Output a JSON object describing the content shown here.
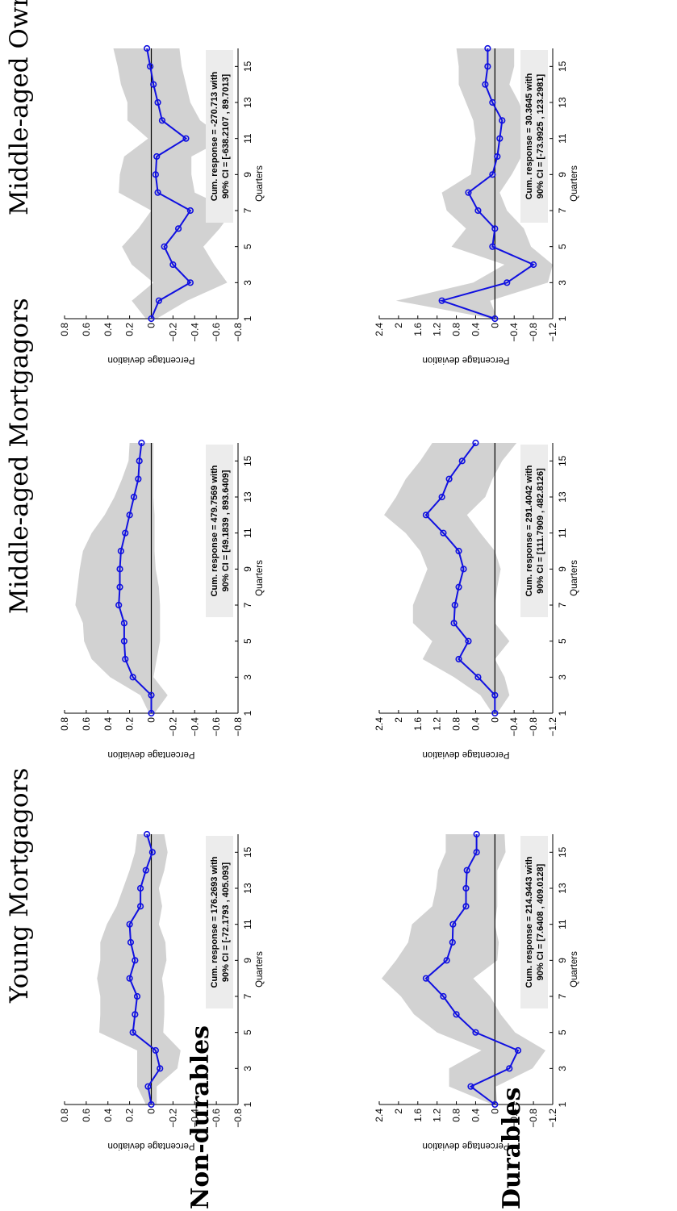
{
  "column_titles": [
    "Young Mortgagors",
    "Middle-aged Mortgagors",
    "Middle-aged Owners"
  ],
  "row_labels": [
    "Non-durables",
    "Durables"
  ],
  "colors": {
    "line": "#1010e0",
    "band": "#d2d2d2",
    "zero_line": "#000000"
  },
  "chart_data": [
    {
      "type": "line",
      "row": 0,
      "col": 0,
      "xlabel": "Quarters",
      "ylabel": "Percentage deviation",
      "xlim": [
        1,
        16
      ],
      "ylim": [
        -0.8,
        0.8
      ],
      "xticks": [
        "1",
        "3",
        "5",
        "7",
        "9",
        "11",
        "13",
        "15"
      ],
      "yticks": [
        "−0.8",
        "−0.6",
        "−0.4",
        "−0.2",
        "0",
        "0.2",
        "0.4",
        "0.6",
        "0.8"
      ],
      "x": [
        1,
        2,
        3,
        4,
        5,
        6,
        7,
        8,
        9,
        10,
        11,
        12,
        13,
        14,
        15,
        16
      ],
      "series": [
        {
          "values": [
            0.0,
            0.03,
            -0.08,
            -0.04,
            0.17,
            0.15,
            0.13,
            0.2,
            0.15,
            0.19,
            0.2,
            0.1,
            0.1,
            0.05,
            -0.01,
            0.04
          ]
        }
      ],
      "band_upper": [
        0.05,
        0.13,
        0.13,
        0.13,
        0.48,
        0.47,
        0.47,
        0.5,
        0.47,
        0.47,
        0.41,
        0.32,
        0.26,
        0.2,
        0.15,
        0.13
      ],
      "band_lower": [
        -0.05,
        -0.05,
        -0.24,
        -0.27,
        -0.11,
        -0.12,
        -0.12,
        -0.1,
        -0.14,
        -0.13,
        -0.07,
        -0.1,
        -0.07,
        -0.12,
        -0.15,
        -0.12
      ],
      "annotation": [
        "Cum. response = 176.2693 with",
        "90% CI = [-72.1793 , 405.093]"
      ]
    },
    {
      "type": "line",
      "row": 0,
      "col": 1,
      "xlabel": "Quarters",
      "ylabel": "Percentage deviation",
      "xlim": [
        1,
        16
      ],
      "ylim": [
        -0.8,
        0.8
      ],
      "xticks": [
        "1",
        "3",
        "5",
        "7",
        "9",
        "11",
        "13",
        "15"
      ],
      "yticks": [
        "−0.8",
        "−0.6",
        "−0.4",
        "−0.2",
        "0",
        "0.2",
        "0.4",
        "0.6",
        "0.8"
      ],
      "x": [
        1,
        2,
        3,
        4,
        5,
        6,
        7,
        8,
        9,
        10,
        11,
        12,
        13,
        14,
        15,
        16
      ],
      "series": [
        {
          "values": [
            0.0,
            0.0,
            0.17,
            0.24,
            0.25,
            0.25,
            0.3,
            0.29,
            0.29,
            0.28,
            0.24,
            0.2,
            0.16,
            0.12,
            0.11,
            0.09
          ]
        }
      ],
      "band_upper": [
        0.02,
        0.1,
        0.38,
        0.55,
        0.62,
        0.63,
        0.7,
        0.68,
        0.66,
        0.63,
        0.55,
        0.43,
        0.34,
        0.27,
        0.21,
        0.2
      ],
      "band_lower": [
        -0.03,
        -0.15,
        -0.02,
        -0.05,
        -0.08,
        -0.08,
        -0.08,
        -0.07,
        -0.04,
        -0.03,
        -0.03,
        -0.03,
        -0.02,
        -0.02,
        -0.02,
        -0.02
      ],
      "annotation": [
        "Cum. response = 479.7569 with",
        "90% CI = [49.1839 , 893.6409]"
      ]
    },
    {
      "type": "line",
      "row": 0,
      "col": 2,
      "xlabel": "Quarters",
      "ylabel": "Percentage deviation",
      "xlim": [
        1,
        16
      ],
      "ylim": [
        -0.8,
        0.8
      ],
      "xticks": [
        "1",
        "3",
        "5",
        "7",
        "9",
        "11",
        "13",
        "15"
      ],
      "yticks": [
        "−0.8",
        "−0.6",
        "−0.4",
        "−0.2",
        "0",
        "0.2",
        "0.4",
        "0.6",
        "0.8"
      ],
      "x": [
        1,
        2,
        3,
        4,
        5,
        6,
        7,
        8,
        9,
        10,
        11,
        12,
        13,
        14,
        15,
        16
      ],
      "series": [
        {
          "values": [
            0.0,
            -0.07,
            -0.36,
            -0.2,
            -0.12,
            -0.25,
            -0.36,
            -0.06,
            -0.04,
            -0.05,
            -0.32,
            -0.1,
            -0.06,
            -0.02,
            0.01,
            0.04
          ]
        }
      ],
      "band_upper": [
        0.05,
        0.18,
        -0.02,
        0.18,
        0.27,
        0.12,
        0.0,
        0.3,
        0.29,
        0.25,
        0.03,
        0.22,
        0.22,
        0.28,
        0.31,
        0.35
      ],
      "band_lower": [
        -0.05,
        -0.33,
        -0.7,
        -0.58,
        -0.48,
        -0.63,
        -0.75,
        -0.4,
        -0.37,
        -0.37,
        -0.68,
        -0.45,
        -0.36,
        -0.32,
        -0.28,
        -0.26
      ],
      "annotation": [
        "Cum. response = -270.713 with",
        "90% CI = [-638.2107 , 89.7013]"
      ]
    },
    {
      "type": "line",
      "row": 1,
      "col": 0,
      "xlabel": "Quarters",
      "ylabel": "Percentage deviation",
      "xlim": [
        1,
        16
      ],
      "ylim": [
        -1.2,
        2.4
      ],
      "xticks": [
        "1",
        "3",
        "5",
        "7",
        "9",
        "11",
        "13",
        "15"
      ],
      "yticks": [
        "−1.2",
        "−0.8",
        "−0.4",
        "0",
        "0.4",
        "0.8",
        "1.2",
        "1.6",
        "2",
        "2.4"
      ],
      "x": [
        1,
        2,
        3,
        4,
        5,
        6,
        7,
        8,
        9,
        10,
        11,
        12,
        13,
        14,
        15,
        16
      ],
      "series": [
        {
          "values": [
            0.0,
            0.5,
            -0.3,
            -0.48,
            0.4,
            0.8,
            1.07,
            1.43,
            1.0,
            0.88,
            0.87,
            0.6,
            0.6,
            0.58,
            0.38,
            0.38
          ]
        }
      ],
      "band_upper": [
        0.05,
        0.95,
        0.95,
        0.28,
        1.2,
        1.68,
        1.95,
        2.35,
        2.05,
        1.8,
        1.72,
        1.3,
        1.22,
        1.18,
        1.02,
        1.02
      ],
      "band_lower": [
        -0.05,
        -0.02,
        -0.78,
        -1.05,
        -0.42,
        -0.12,
        0.1,
        0.45,
        -0.05,
        -0.08,
        0.0,
        -0.05,
        -0.05,
        -0.05,
        -0.22,
        -0.2
      ],
      "annotation": [
        "Cum. response = 214.9443 with",
        "90% CI = [7.6408 , 409.0128]"
      ]
    },
    {
      "type": "line",
      "row": 1,
      "col": 1,
      "xlabel": "Quarters",
      "ylabel": "Percentage deviation",
      "xlim": [
        1,
        16
      ],
      "ylim": [
        -1.2,
        2.4
      ],
      "xticks": [
        "1",
        "3",
        "5",
        "7",
        "9",
        "11",
        "13",
        "15"
      ],
      "yticks": [
        "−1.2",
        "−0.8",
        "−0.4",
        "0",
        "0.4",
        "0.8",
        "1.2",
        "1.6",
        "2",
        "2.4"
      ],
      "x": [
        1,
        2,
        3,
        4,
        5,
        6,
        7,
        8,
        9,
        10,
        11,
        12,
        13,
        14,
        15,
        16
      ],
      "series": [
        {
          "values": [
            0.0,
            0.0,
            0.35,
            0.75,
            0.55,
            0.85,
            0.83,
            0.75,
            0.65,
            0.75,
            1.07,
            1.43,
            1.1,
            0.95,
            0.68,
            0.4
          ]
        }
      ],
      "band_upper": [
        0.05,
        0.3,
        0.85,
        1.5,
        1.3,
        1.7,
        1.7,
        1.55,
        1.4,
        1.55,
        1.85,
        2.3,
        2.05,
        1.85,
        1.55,
        1.3
      ],
      "band_lower": [
        -0.05,
        -0.3,
        -0.2,
        0.0,
        -0.3,
        0.0,
        0.0,
        -0.05,
        -0.12,
        0.0,
        0.3,
        0.58,
        0.2,
        0.05,
        -0.15,
        -0.45
      ],
      "annotation": [
        "Cum. response = 291.4042 with",
        "90% CI = [111.7909 , 482.8126]"
      ]
    },
    {
      "type": "line",
      "row": 1,
      "col": 2,
      "xlabel": "Quarters",
      "ylabel": "Percentage deviation",
      "xlim": [
        1,
        16
      ],
      "ylim": [
        -1.2,
        2.4
      ],
      "xticks": [
        "1",
        "3",
        "5",
        "7",
        "9",
        "11",
        "13",
        "15"
      ],
      "yticks": [
        "−1.2",
        "−0.8",
        "−0.4",
        "0",
        "0.4",
        "0.8",
        "1.2",
        "1.6",
        "2",
        "2.4"
      ],
      "x": [
        1,
        2,
        3,
        4,
        5,
        6,
        7,
        8,
        9,
        10,
        11,
        12,
        13,
        14,
        15,
        16
      ],
      "series": [
        {
          "values": [
            0.0,
            1.1,
            -0.25,
            -0.8,
            0.05,
            0.0,
            0.35,
            0.55,
            0.05,
            -0.05,
            -0.1,
            -0.15,
            0.05,
            0.2,
            0.15,
            0.15
          ]
        }
      ],
      "band_upper": [
        0.05,
        2.05,
        0.45,
        -0.2,
        0.9,
        0.6,
        1.0,
        1.1,
        0.5,
        0.45,
        0.4,
        0.45,
        0.6,
        0.75,
        0.75,
        0.8
      ],
      "band_lower": [
        -0.05,
        0.1,
        -1.1,
        -1.2,
        -0.75,
        -0.6,
        -0.25,
        -0.1,
        -0.35,
        -0.55,
        -0.65,
        -0.65,
        -0.5,
        -0.3,
        -0.4,
        -0.4
      ],
      "annotation": [
        "Cum. response = 30.3645 with",
        "90% CI = [-73.9925 , 123.2981]"
      ]
    }
  ]
}
